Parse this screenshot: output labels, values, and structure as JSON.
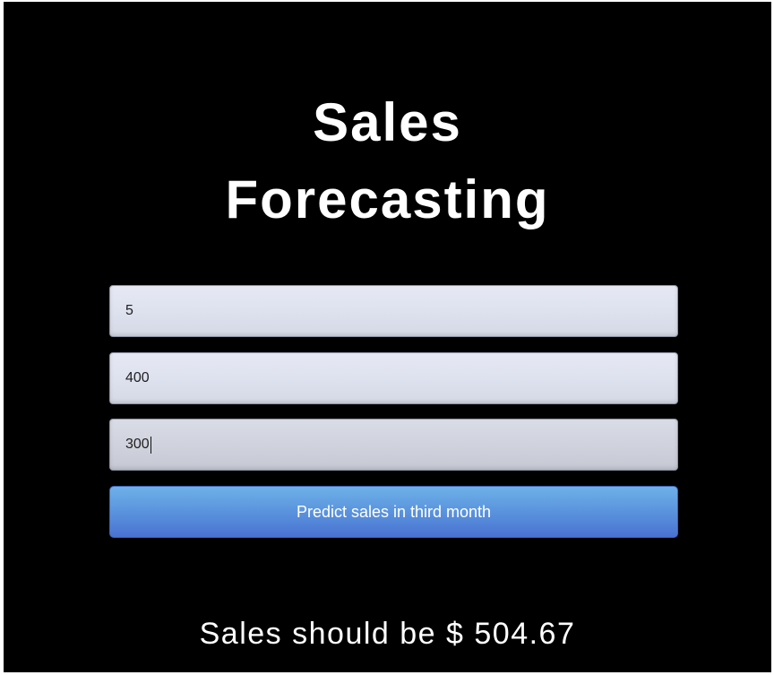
{
  "page": {
    "title_line1": "Sales",
    "title_line2": "Forecasting"
  },
  "form": {
    "inputs": [
      {
        "value": "5"
      },
      {
        "value": "400"
      },
      {
        "value": "300"
      }
    ],
    "submit_label": "Predict sales in third month"
  },
  "result": {
    "text": "Sales should be $ 504.67"
  },
  "colors": {
    "background": "#000000",
    "button_top": "#6eb1e8",
    "button_bottom": "#4a72d2",
    "input_bg": "#dde1ee"
  }
}
